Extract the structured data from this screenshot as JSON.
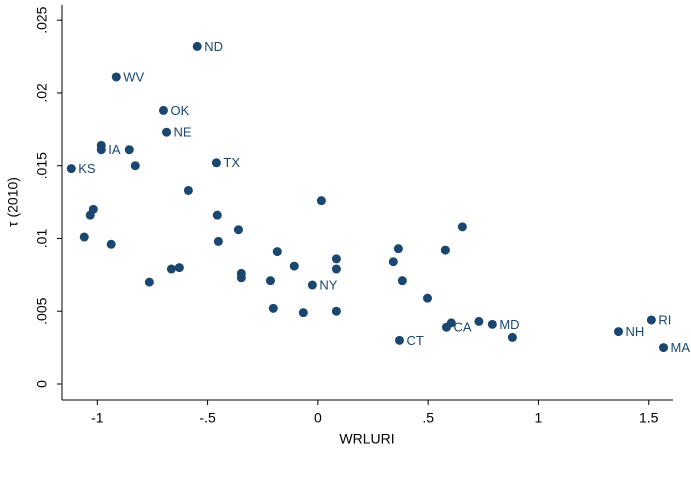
{
  "chart_data": {
    "type": "scatter",
    "x_label": "WRLURI",
    "y_label": "τ (2010)",
    "color": "#1a476f",
    "xlim": [
      -1.16,
      1.61
    ],
    "ylim": [
      -0.0011,
      0.0257
    ],
    "xticks": [
      -1,
      {
        "value": -0.5,
        "label": "-.5"
      },
      0,
      {
        "value": 0.5,
        "label": ".5"
      },
      1,
      1.5
    ],
    "yticks": [
      0,
      {
        "value": 0.005,
        "label": ".005"
      },
      {
        "value": 0.01,
        "label": ".01"
      },
      {
        "value": 0.015,
        "label": ".015"
      },
      {
        "value": 0.02,
        "label": ".02"
      },
      {
        "value": 0.025,
        "label": ".025"
      }
    ],
    "x": [
      -0.547,
      -0.914,
      -0.7,
      -0.686,
      -0.982,
      -0.982,
      -0.855,
      -1.118,
      -0.828,
      -0.46,
      -0.587,
      0.016,
      -1.018,
      -1.032,
      -0.456,
      -0.36,
      0.655,
      -1.059,
      -0.937,
      -0.451,
      -0.184,
      0.365,
      0.578,
      0.084,
      0.342,
      0.084,
      -0.107,
      -0.628,
      -0.664,
      -0.347,
      -0.347,
      -0.764,
      -0.215,
      0.383,
      -0.025,
      0.497,
      -0.202,
      -0.066,
      0.084,
      0.605,
      0.583,
      0.791,
      0.73,
      1.512,
      1.363,
      0.882,
      0.37,
      1.567
    ],
    "values": [
      0.0232,
      0.0211,
      0.0188,
      0.0173,
      0.0161,
      0.0164,
      0.0161,
      0.0148,
      0.015,
      0.0152,
      0.0133,
      0.0126,
      0.012,
      0.0116,
      0.0116,
      0.0106,
      0.0108,
      0.0101,
      0.0096,
      0.0098,
      0.0091,
      0.0093,
      0.0092,
      0.0086,
      0.0084,
      0.0079,
      0.0081,
      0.008,
      0.0079,
      0.0076,
      0.0073,
      0.007,
      0.0071,
      0.0071,
      0.0068,
      0.0059,
      0.0052,
      0.0049,
      0.005,
      0.0042,
      0.0039,
      0.0041,
      0.0043,
      0.0044,
      0.0036,
      0.0032,
      0.003,
      0.0025
    ],
    "labels": [
      "ND",
      "WV",
      "OK",
      "NE",
      "IA",
      null,
      null,
      "KS",
      null,
      "TX",
      null,
      null,
      null,
      null,
      null,
      null,
      null,
      null,
      null,
      null,
      null,
      null,
      null,
      null,
      null,
      null,
      null,
      null,
      null,
      null,
      null,
      null,
      null,
      null,
      "NY",
      null,
      null,
      null,
      null,
      null,
      "CA",
      "MD",
      null,
      "RI",
      "NH",
      null,
      "CT",
      "MA"
    ]
  }
}
